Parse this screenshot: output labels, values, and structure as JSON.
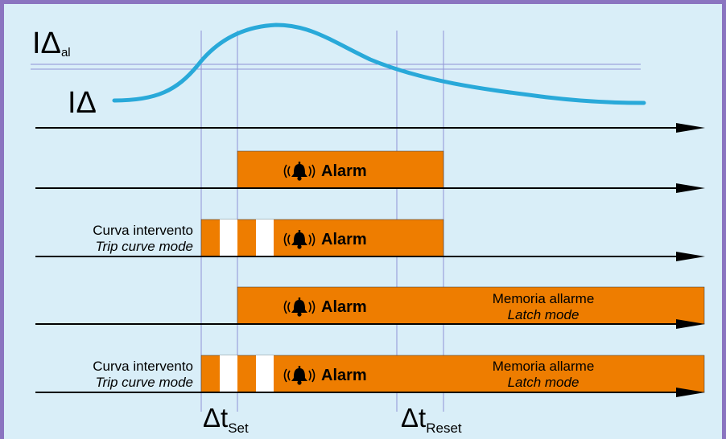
{
  "signal": {
    "symbol": "IΔ",
    "threshold_symbol": "IΔ",
    "threshold_subscript": "al"
  },
  "alarm_label": "Alarm",
  "mode_labels": {
    "trip_it": "Curva intervento",
    "trip_en": "Trip curve mode",
    "latch_it": "Memoria allarme",
    "latch_en": "Latch mode"
  },
  "time_markers": {
    "set_symbol": "Δt",
    "set_subscript": "Set",
    "reset_symbol": "Δt",
    "reset_subscript": "Reset"
  },
  "colors": {
    "background": "#d9eef8",
    "frame": "#8a74c0",
    "curve": "#29a9d9",
    "alarm_bar": "#ee7d00",
    "axis": "#000000",
    "guide_line": "#8f93d6"
  },
  "icons": {
    "alarm": "ringing-bell-icon"
  }
}
